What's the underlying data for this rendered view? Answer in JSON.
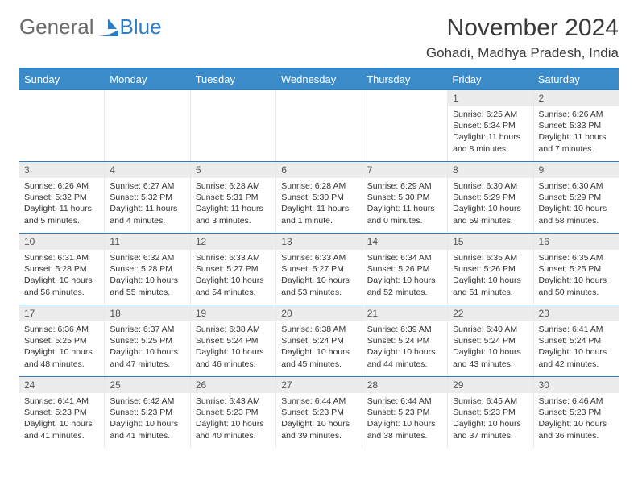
{
  "brand": {
    "part1": "General",
    "part2": "Blue"
  },
  "title": "November 2024",
  "location": "Gohadi, Madhya Pradesh, India",
  "colors": {
    "accent": "#2e7cc2",
    "header_bg": "#3b8bc9",
    "daynum_bg": "#ececec",
    "text": "#333333",
    "brand_gray": "#6a6a6a"
  },
  "days_of_week": [
    "Sunday",
    "Monday",
    "Tuesday",
    "Wednesday",
    "Thursday",
    "Friday",
    "Saturday"
  ],
  "weeks": [
    [
      {
        "n": "",
        "sunrise": "",
        "sunset": "",
        "daylight": ""
      },
      {
        "n": "",
        "sunrise": "",
        "sunset": "",
        "daylight": ""
      },
      {
        "n": "",
        "sunrise": "",
        "sunset": "",
        "daylight": ""
      },
      {
        "n": "",
        "sunrise": "",
        "sunset": "",
        "daylight": ""
      },
      {
        "n": "",
        "sunrise": "",
        "sunset": "",
        "daylight": ""
      },
      {
        "n": "1",
        "sunrise": "Sunrise: 6:25 AM",
        "sunset": "Sunset: 5:34 PM",
        "daylight": "Daylight: 11 hours and 8 minutes."
      },
      {
        "n": "2",
        "sunrise": "Sunrise: 6:26 AM",
        "sunset": "Sunset: 5:33 PM",
        "daylight": "Daylight: 11 hours and 7 minutes."
      }
    ],
    [
      {
        "n": "3",
        "sunrise": "Sunrise: 6:26 AM",
        "sunset": "Sunset: 5:32 PM",
        "daylight": "Daylight: 11 hours and 5 minutes."
      },
      {
        "n": "4",
        "sunrise": "Sunrise: 6:27 AM",
        "sunset": "Sunset: 5:32 PM",
        "daylight": "Daylight: 11 hours and 4 minutes."
      },
      {
        "n": "5",
        "sunrise": "Sunrise: 6:28 AM",
        "sunset": "Sunset: 5:31 PM",
        "daylight": "Daylight: 11 hours and 3 minutes."
      },
      {
        "n": "6",
        "sunrise": "Sunrise: 6:28 AM",
        "sunset": "Sunset: 5:30 PM",
        "daylight": "Daylight: 11 hours and 1 minute."
      },
      {
        "n": "7",
        "sunrise": "Sunrise: 6:29 AM",
        "sunset": "Sunset: 5:30 PM",
        "daylight": "Daylight: 11 hours and 0 minutes."
      },
      {
        "n": "8",
        "sunrise": "Sunrise: 6:30 AM",
        "sunset": "Sunset: 5:29 PM",
        "daylight": "Daylight: 10 hours and 59 minutes."
      },
      {
        "n": "9",
        "sunrise": "Sunrise: 6:30 AM",
        "sunset": "Sunset: 5:29 PM",
        "daylight": "Daylight: 10 hours and 58 minutes."
      }
    ],
    [
      {
        "n": "10",
        "sunrise": "Sunrise: 6:31 AM",
        "sunset": "Sunset: 5:28 PM",
        "daylight": "Daylight: 10 hours and 56 minutes."
      },
      {
        "n": "11",
        "sunrise": "Sunrise: 6:32 AM",
        "sunset": "Sunset: 5:28 PM",
        "daylight": "Daylight: 10 hours and 55 minutes."
      },
      {
        "n": "12",
        "sunrise": "Sunrise: 6:33 AM",
        "sunset": "Sunset: 5:27 PM",
        "daylight": "Daylight: 10 hours and 54 minutes."
      },
      {
        "n": "13",
        "sunrise": "Sunrise: 6:33 AM",
        "sunset": "Sunset: 5:27 PM",
        "daylight": "Daylight: 10 hours and 53 minutes."
      },
      {
        "n": "14",
        "sunrise": "Sunrise: 6:34 AM",
        "sunset": "Sunset: 5:26 PM",
        "daylight": "Daylight: 10 hours and 52 minutes."
      },
      {
        "n": "15",
        "sunrise": "Sunrise: 6:35 AM",
        "sunset": "Sunset: 5:26 PM",
        "daylight": "Daylight: 10 hours and 51 minutes."
      },
      {
        "n": "16",
        "sunrise": "Sunrise: 6:35 AM",
        "sunset": "Sunset: 5:25 PM",
        "daylight": "Daylight: 10 hours and 50 minutes."
      }
    ],
    [
      {
        "n": "17",
        "sunrise": "Sunrise: 6:36 AM",
        "sunset": "Sunset: 5:25 PM",
        "daylight": "Daylight: 10 hours and 48 minutes."
      },
      {
        "n": "18",
        "sunrise": "Sunrise: 6:37 AM",
        "sunset": "Sunset: 5:25 PM",
        "daylight": "Daylight: 10 hours and 47 minutes."
      },
      {
        "n": "19",
        "sunrise": "Sunrise: 6:38 AM",
        "sunset": "Sunset: 5:24 PM",
        "daylight": "Daylight: 10 hours and 46 minutes."
      },
      {
        "n": "20",
        "sunrise": "Sunrise: 6:38 AM",
        "sunset": "Sunset: 5:24 PM",
        "daylight": "Daylight: 10 hours and 45 minutes."
      },
      {
        "n": "21",
        "sunrise": "Sunrise: 6:39 AM",
        "sunset": "Sunset: 5:24 PM",
        "daylight": "Daylight: 10 hours and 44 minutes."
      },
      {
        "n": "22",
        "sunrise": "Sunrise: 6:40 AM",
        "sunset": "Sunset: 5:24 PM",
        "daylight": "Daylight: 10 hours and 43 minutes."
      },
      {
        "n": "23",
        "sunrise": "Sunrise: 6:41 AM",
        "sunset": "Sunset: 5:24 PM",
        "daylight": "Daylight: 10 hours and 42 minutes."
      }
    ],
    [
      {
        "n": "24",
        "sunrise": "Sunrise: 6:41 AM",
        "sunset": "Sunset: 5:23 PM",
        "daylight": "Daylight: 10 hours and 41 minutes."
      },
      {
        "n": "25",
        "sunrise": "Sunrise: 6:42 AM",
        "sunset": "Sunset: 5:23 PM",
        "daylight": "Daylight: 10 hours and 41 minutes."
      },
      {
        "n": "26",
        "sunrise": "Sunrise: 6:43 AM",
        "sunset": "Sunset: 5:23 PM",
        "daylight": "Daylight: 10 hours and 40 minutes."
      },
      {
        "n": "27",
        "sunrise": "Sunrise: 6:44 AM",
        "sunset": "Sunset: 5:23 PM",
        "daylight": "Daylight: 10 hours and 39 minutes."
      },
      {
        "n": "28",
        "sunrise": "Sunrise: 6:44 AM",
        "sunset": "Sunset: 5:23 PM",
        "daylight": "Daylight: 10 hours and 38 minutes."
      },
      {
        "n": "29",
        "sunrise": "Sunrise: 6:45 AM",
        "sunset": "Sunset: 5:23 PM",
        "daylight": "Daylight: 10 hours and 37 minutes."
      },
      {
        "n": "30",
        "sunrise": "Sunrise: 6:46 AM",
        "sunset": "Sunset: 5:23 PM",
        "daylight": "Daylight: 10 hours and 36 minutes."
      }
    ]
  ]
}
